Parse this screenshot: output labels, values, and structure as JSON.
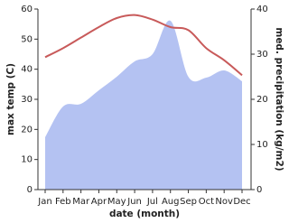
{
  "chart_data": {
    "type": "line-area",
    "categories": [
      "Jan",
      "Feb",
      "Mar",
      "Apr",
      "May",
      "Jun",
      "Jul",
      "Aug",
      "Sep",
      "Oct",
      "Nov",
      "Dec"
    ],
    "x_label": "date (month)",
    "y_label": "max temp (C)",
    "y2_label": "med. precipitation (kg/m2)",
    "series": [
      {
        "name": "med. precipitation",
        "type": "area",
        "axis": "y2",
        "color": "#b4c2f2",
        "values": [
          11.6,
          18.4,
          19,
          22,
          25,
          28.4,
          30,
          37.4,
          25,
          24.8,
          26.4,
          24
        ]
      },
      {
        "name": "max temp",
        "type": "line",
        "color": "#c85a5a",
        "values": [
          44,
          47,
          50.5,
          54,
          57,
          58,
          56.5,
          54,
          53,
          47,
          43,
          38
        ]
      }
    ],
    "ylim": [
      0,
      60
    ],
    "yticks": [
      0,
      10,
      20,
      30,
      40,
      50,
      60
    ],
    "y2lim": [
      0,
      40
    ],
    "y2ticks": [
      0,
      10,
      20,
      30,
      40
    ]
  }
}
